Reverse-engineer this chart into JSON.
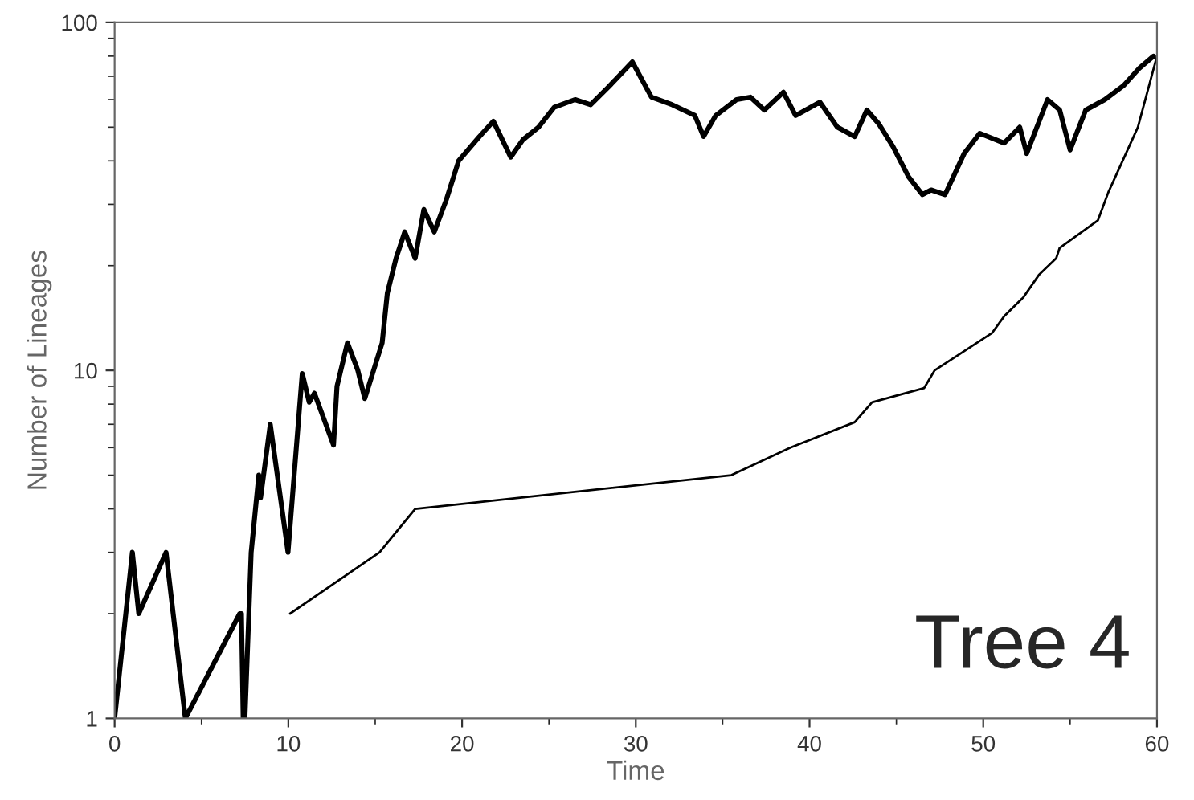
{
  "chart_data": {
    "type": "line",
    "xlabel": "Time",
    "ylabel": "Number of Lineages",
    "log": "y",
    "xlim": [
      0,
      60
    ],
    "xticks": [
      0,
      10,
      20,
      30,
      40,
      50,
      60
    ],
    "ylim": [
      1,
      100
    ],
    "yticks": [
      1,
      10,
      100
    ],
    "grid": false,
    "marker": "none",
    "line_style": "solid",
    "annotations": [
      "Tree 4"
    ],
    "series": [
      {
        "color": "#000000",
        "x": [
          0,
          1.02,
          1.39,
          2.96,
          4.07,
          7.2,
          7.3,
          7.4,
          7.5,
          7.86,
          8.3,
          8.4,
          8.96,
          9.98,
          10.8,
          11.2,
          11.5,
          12.6,
          12.8,
          13.4,
          14.0,
          14.4,
          15.4,
          15.7,
          16.2,
          16.7,
          17.3,
          17.8,
          18.4,
          19.1,
          19.8,
          21,
          21.8,
          22.8,
          23.5,
          24.4,
          25.3,
          26.5,
          27.4,
          28.4,
          29.8,
          30.9,
          32.1,
          33.4,
          33.9,
          34.6,
          35.8,
          36.6,
          37.4,
          38.5,
          39.2,
          40.6,
          41.6,
          42.6,
          43.3,
          44.0,
          44.8,
          45.7,
          46.5,
          47.0,
          47.8,
          48.9,
          49.8,
          51.2,
          52.1,
          52.5,
          53.7,
          54.4,
          55.0,
          55.9,
          57.0,
          58.1,
          59.0,
          59.8
        ],
        "values": [
          1,
          3.0,
          2.0,
          3.0,
          1,
          2.0,
          2.0,
          1,
          1,
          3.0,
          5.0,
          4.3,
          7,
          3.0,
          9.8,
          8.1,
          8.6,
          6.1,
          9.0,
          12,
          10,
          8.3,
          12,
          16.7,
          21,
          25,
          21,
          29,
          25,
          31,
          40,
          47,
          52,
          41,
          46,
          50,
          57,
          60,
          58,
          65,
          77,
          61,
          58,
          54,
          47,
          54,
          60,
          61,
          56,
          63,
          54,
          59,
          50,
          47,
          56,
          51,
          44,
          36,
          32,
          33,
          32,
          42,
          48,
          45,
          50,
          42,
          60,
          56,
          43,
          56,
          60,
          66,
          74,
          80
        ]
      },
      {
        "color": "#000000",
        "x": [
          10.1,
          15.25,
          17.3,
          35.5,
          38.9,
          42.6,
          43.6,
          46.6,
          47.2,
          50.5,
          51.2,
          52.3,
          53.2,
          54.2,
          54.4,
          56.6,
          57.2,
          58.9,
          60
        ],
        "values": [
          2,
          3,
          4.0,
          5.0,
          6.0,
          7.1,
          8.1,
          8.9,
          10,
          12.8,
          14.3,
          16.2,
          18.8,
          21,
          22.5,
          27,
          32.5,
          50,
          80
        ]
      }
    ]
  }
}
